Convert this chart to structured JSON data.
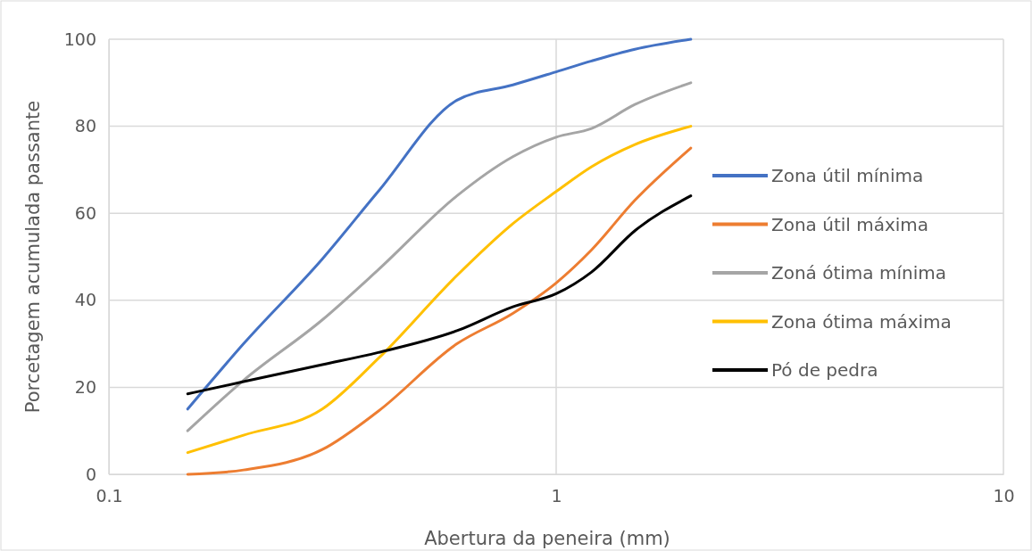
{
  "chart_data": {
    "type": "line",
    "xlabel": "Abertura da peneira (mm)",
    "ylabel": "Porcetagem acumulada passante",
    "log": "x",
    "x": [
      0.15,
      0.2,
      0.3,
      0.4,
      0.6,
      0.8,
      1,
      1.2,
      1.5,
      2
    ],
    "xlim": [
      0.1,
      10
    ],
    "xticks": [
      0.1,
      1,
      10
    ],
    "ylim": [
      0,
      100
    ],
    "yticks": [
      0,
      20,
      40,
      60,
      80,
      100
    ],
    "grid": true,
    "legend": "right",
    "marker": "none",
    "line_style": "solid",
    "series": [
      {
        "name": "Zona útil mínima",
        "color": "#4472c4",
        "values": [
          15,
          30,
          49.5,
          65,
          86,
          89.5,
          92.5,
          95,
          97.7,
          100
        ]
      },
      {
        "name": "Zona útil máxima",
        "color": "#ed7d31",
        "values": [
          0,
          1,
          5.7,
          14.5,
          30,
          37,
          44,
          51.6,
          63,
          75
        ]
      },
      {
        "name": "Zoná ótima mínima",
        "color": "#a5a5a5",
        "values": [
          10,
          21.6,
          35.5,
          47,
          64,
          73,
          77.5,
          79.5,
          85,
          90
        ]
      },
      {
        "name": "Zona ótima máxima",
        "color": "#ffc000",
        "values": [
          5,
          9,
          15,
          26.6,
          45.7,
          57.6,
          65,
          70.7,
          75.8,
          80
        ]
      },
      {
        "name": "Pó de pedra",
        "color": "#000000",
        "values": [
          18.5,
          21.3,
          25.2,
          28,
          33,
          38.5,
          41.5,
          46.5,
          56,
          64
        ]
      }
    ]
  }
}
